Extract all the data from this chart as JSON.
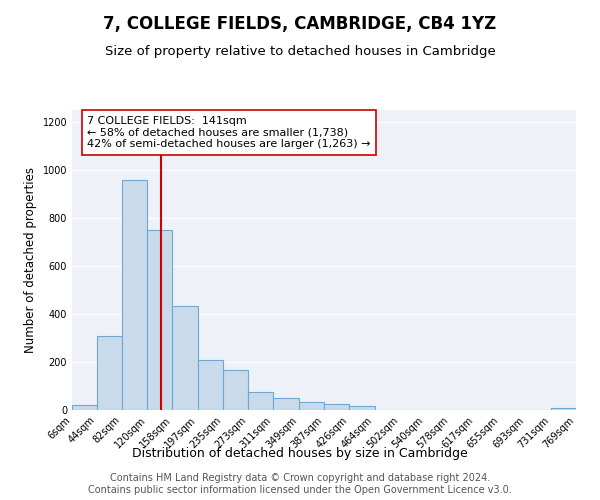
{
  "title": "7, COLLEGE FIELDS, CAMBRIDGE, CB4 1YZ",
  "subtitle": "Size of property relative to detached houses in Cambridge",
  "xlabel": "Distribution of detached houses by size in Cambridge",
  "ylabel": "Number of detached properties",
  "bin_edges": [
    6,
    44,
    82,
    120,
    158,
    197,
    235,
    273,
    311,
    349,
    387,
    426,
    464,
    502,
    540,
    578,
    617,
    655,
    693,
    731,
    769
  ],
  "bin_labels": [
    "6sqm",
    "44sqm",
    "82sqm",
    "120sqm",
    "158sqm",
    "197sqm",
    "235sqm",
    "273sqm",
    "311sqm",
    "349sqm",
    "387sqm",
    "426sqm",
    "464sqm",
    "502sqm",
    "540sqm",
    "578sqm",
    "617sqm",
    "655sqm",
    "693sqm",
    "731sqm",
    "769sqm"
  ],
  "counts": [
    20,
    310,
    960,
    750,
    435,
    210,
    165,
    75,
    50,
    35,
    25,
    15,
    0,
    0,
    0,
    0,
    0,
    0,
    0,
    10
  ],
  "bar_facecolor": "#c9daea",
  "bar_edgecolor": "#6fa8d4",
  "bar_linewidth": 0.8,
  "vline_x": 141,
  "vline_color": "#cc0000",
  "vline_linewidth": 1.5,
  "annotation_text": "7 COLLEGE FIELDS:  141sqm\n← 58% of detached houses are smaller (1,738)\n42% of semi-detached houses are larger (1,263) →",
  "annotation_box_edgecolor": "#cc0000",
  "annotation_box_facecolor": "white",
  "annotation_fontsize": 8,
  "ylim": [
    0,
    1250
  ],
  "yticks": [
    0,
    200,
    400,
    600,
    800,
    1000,
    1200
  ],
  "background_color": "#eef2f8",
  "footer_text": "Contains HM Land Registry data © Crown copyright and database right 2024.\nContains public sector information licensed under the Open Government Licence v3.0.",
  "title_fontsize": 12,
  "subtitle_fontsize": 9.5,
  "xlabel_fontsize": 9,
  "ylabel_fontsize": 8.5,
  "footer_fontsize": 7,
  "tick_fontsize": 7
}
